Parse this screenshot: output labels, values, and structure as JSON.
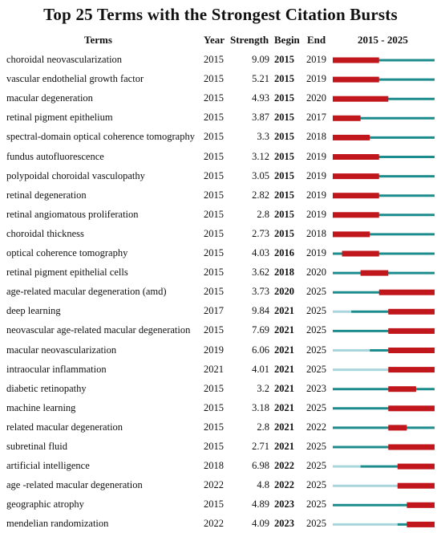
{
  "chart_data": {
    "type": "table",
    "title": "Top 25 Terms with the Strongest Citation Bursts",
    "headers": {
      "terms": "Terms",
      "year": "Year",
      "strength": "Strength",
      "begin": "Begin",
      "end": "End",
      "range": "2015 - 2025"
    },
    "range_start": 2015,
    "range_end": 2025,
    "colors": {
      "burst": "#c0161c",
      "active": "#1c8c8c",
      "inactive": "#a9d6dc"
    },
    "rows": [
      {
        "term": "choroidal neovascularization",
        "year": "2015",
        "strength": "9.09",
        "begin": "2015",
        "end": "2019"
      },
      {
        "term": "vascular endothelial growth factor",
        "year": "2015",
        "strength": "5.21",
        "begin": "2015",
        "end": "2019"
      },
      {
        "term": "macular degeneration",
        "year": "2015",
        "strength": "4.93",
        "begin": "2015",
        "end": "2020"
      },
      {
        "term": "retinal pigment epithelium",
        "year": "2015",
        "strength": "3.87",
        "begin": "2015",
        "end": "2017"
      },
      {
        "term": "spectral-domain optical coherence tomography",
        "year": "2015",
        "strength": "3.3",
        "begin": "2015",
        "end": "2018"
      },
      {
        "term": "fundus autofluorescence",
        "year": "2015",
        "strength": "3.12",
        "begin": "2015",
        "end": "2019"
      },
      {
        "term": "polypoidal choroidal vasculopathy",
        "year": "2015",
        "strength": "3.05",
        "begin": "2015",
        "end": "2019"
      },
      {
        "term": "retinal degeneration",
        "year": "2015",
        "strength": "2.82",
        "begin": "2015",
        "end": "2019"
      },
      {
        "term": "retinal angiomatous proliferation",
        "year": "2015",
        "strength": "2.8",
        "begin": "2015",
        "end": "2019"
      },
      {
        "term": "choroidal thickness",
        "year": "2015",
        "strength": "2.73",
        "begin": "2015",
        "end": "2018"
      },
      {
        "term": "optical coherence tomography",
        "year": "2015",
        "strength": "4.03",
        "begin": "2016",
        "end": "2019"
      },
      {
        "term": "retinal pigment epithelial cells",
        "year": "2015",
        "strength": "3.62",
        "begin": "2018",
        "end": "2020"
      },
      {
        "term": "age-related macular degeneration (amd)",
        "year": "2015",
        "strength": "3.73",
        "begin": "2020",
        "end": "2025"
      },
      {
        "term": "deep learning",
        "year": "2017",
        "strength": "9.84",
        "begin": "2021",
        "end": "2025"
      },
      {
        "term": "neovascular age-related macular degeneration",
        "year": "2015",
        "strength": "7.69",
        "begin": "2021",
        "end": "2025"
      },
      {
        "term": "macular neovascularization",
        "year": "2019",
        "strength": "6.06",
        "begin": "2021",
        "end": "2025"
      },
      {
        "term": "intraocular inflammation",
        "year": "2021",
        "strength": "4.01",
        "begin": "2021",
        "end": "2025"
      },
      {
        "term": "diabetic retinopathy",
        "year": "2015",
        "strength": "3.2",
        "begin": "2021",
        "end": "2023"
      },
      {
        "term": "machine learning",
        "year": "2015",
        "strength": "3.18",
        "begin": "2021",
        "end": "2025"
      },
      {
        "term": "related macular degeneration",
        "year": "2015",
        "strength": "2.8",
        "begin": "2021",
        "end": "2022"
      },
      {
        "term": "subretinal fluid",
        "year": "2015",
        "strength": "2.71",
        "begin": "2021",
        "end": "2025"
      },
      {
        "term": "artificial intelligence",
        "year": "2018",
        "strength": "6.98",
        "begin": "2022",
        "end": "2025"
      },
      {
        "term": "age -related macular degeneration",
        "year": "2022",
        "strength": "4.8",
        "begin": "2022",
        "end": "2025"
      },
      {
        "term": "geographic atrophy",
        "year": "2015",
        "strength": "4.89",
        "begin": "2023",
        "end": "2025"
      },
      {
        "term": "mendelian randomization",
        "year": "2022",
        "strength": "4.09",
        "begin": "2023",
        "end": "2025"
      }
    ]
  }
}
